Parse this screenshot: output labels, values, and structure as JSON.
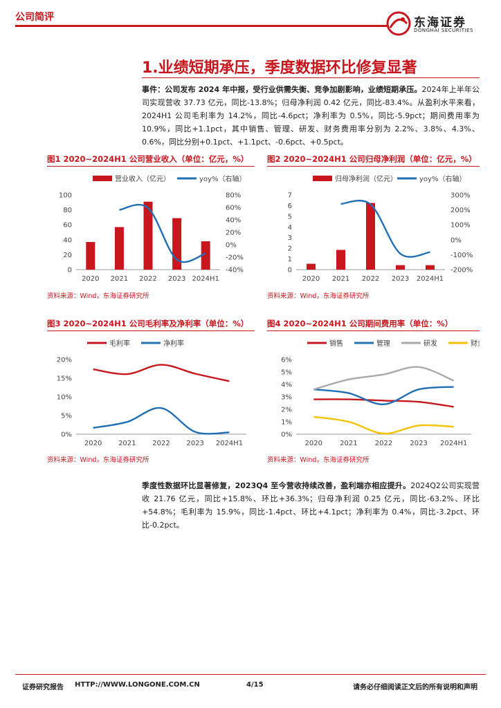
{
  "header": {
    "tag": "公司简评",
    "logo_cn": "东海证券",
    "logo_en": "DONGHAI SECURITIES"
  },
  "section": {
    "title": "1.业绩短期承压，季度数据环比修复显著"
  },
  "para1": {
    "lead": "事件：公司发布 2024 年中报，受行业供需失衡、竞争加剧影响，业绩短期承压。",
    "body": "2024年上半年公司实现营收 37.73 亿元，同比-13.8%；归母净利润 0.42 亿元，同比-83.4%。从盈利水平来看，2024H1 公司毛利率为 14.2%，同比-4.6pct；净利率为 0.5%，同比-5.9pct；期间费用率为 10.9%，同比+1.1pct，其中销售、管理、研发、财务费用率分别为 2.2%、3.8%、4.3%、0.6%，同比分别+0.1pct、+1.1pct、-0.6pct、+0.5pct。"
  },
  "para2": {
    "lead": "季度性数据环比显著修复，2023Q4 至今营收持续改善，盈利端亦相应提升。",
    "body": "2024Q2公司实现营收 21.76 亿元，同比+15.8%、环比+36.3%；归母净利润 0.25 亿元，同比-63.2%、环比+54.8%；毛利率为 15.9%，同比-1.4pct、环比+4.1pct；净利率为 0.4%，同比-3.2pct、环比-0.2pct。"
  },
  "source_text": "资料来源：Wind，东海证券研究所",
  "footer": {
    "left": "证券研究报告",
    "url": "HTTP://WWW.LONGONE.COM.CN",
    "page": "4/15",
    "right": "请务必仔细阅读正文后的所有说明和声明"
  },
  "colors": {
    "red": "#c8161d",
    "blue": "#1f6fb5",
    "gray": "#aaaaaa",
    "yellow": "#f5c200"
  },
  "chart_data": [
    {
      "title": "图1  2020~2024H1 公司营业收入（单位：亿元，%）",
      "type": "bar",
      "categories": [
        "2020",
        "2021",
        "2022",
        "2023",
        "2024H1"
      ],
      "series": [
        {
          "name": "营业收入（亿元）",
          "type": "bar",
          "axis": "left",
          "color": "#c8161d",
          "values": [
            37,
            57,
            91,
            69,
            38
          ]
        },
        {
          "name": "yoy%（右轴）",
          "type": "line",
          "axis": "right",
          "color": "#1f6fb5",
          "values": [
            null,
            56,
            59,
            -24,
            -14
          ]
        }
      ],
      "ylim": [
        0,
        100
      ],
      "yticks": [
        0,
        20,
        40,
        60,
        80,
        100
      ],
      "y2lim": [
        -40,
        80
      ],
      "y2ticks": [
        -40,
        -20,
        0,
        20,
        40,
        60,
        80
      ],
      "y2suffix": "%"
    },
    {
      "title": "图2  2020~2024H1 公司归母净利润（单位：亿元，%）",
      "type": "bar",
      "categories": [
        "2020",
        "2021",
        "2022",
        "2023",
        "2024H1"
      ],
      "series": [
        {
          "name": "归母净利润（亿元）",
          "type": "bar",
          "axis": "left",
          "color": "#c8161d",
          "values": [
            0.55,
            1.85,
            6.25,
            0.42,
            0.42
          ]
        },
        {
          "name": "yoy%（右轴）",
          "type": "line",
          "axis": "right",
          "color": "#1f6fb5",
          "values": [
            null,
            240,
            237,
            -93,
            -83
          ]
        }
      ],
      "ylim": [
        0,
        7
      ],
      "yticks": [
        0,
        1,
        2,
        3,
        4,
        5,
        6,
        7
      ],
      "y2lim": [
        -200,
        300
      ],
      "y2ticks": [
        -200,
        -100,
        0,
        100,
        200,
        300
      ],
      "y2suffix": "%"
    },
    {
      "title": "图3  2020~2024H1 公司毛利率及净利率（单位：%）",
      "type": "line",
      "categories": [
        "2020",
        "2021",
        "2022",
        "2023",
        "2024H1"
      ],
      "series": [
        {
          "name": "毛利率",
          "color": "#c8161d",
          "values": [
            17.4,
            16.1,
            18.6,
            16.2,
            14.2
          ]
        },
        {
          "name": "净利率",
          "color": "#1f6fb5",
          "values": [
            1.7,
            3.3,
            7.0,
            0.6,
            0.5
          ]
        }
      ],
      "ylim": [
        0,
        20
      ],
      "yticks": [
        0,
        5,
        10,
        15,
        20
      ],
      "ysuffix": "%"
    },
    {
      "title": "图4  2020~2024H1 公司期间费用率（单位：%）",
      "type": "line",
      "categories": [
        "2020",
        "2021",
        "2022",
        "2023",
        "2024H1"
      ],
      "series": [
        {
          "name": "销售",
          "color": "#c8161d",
          "values": [
            2.8,
            2.8,
            2.7,
            2.6,
            2.2
          ]
        },
        {
          "name": "管理",
          "color": "#1f6fb5",
          "values": [
            3.6,
            3.3,
            2.4,
            3.6,
            3.8
          ]
        },
        {
          "name": "研发",
          "color": "#aaaaaa",
          "values": [
            3.6,
            4.4,
            4.8,
            5.4,
            4.3
          ]
        },
        {
          "name": "财务",
          "color": "#f5c200",
          "values": [
            1.4,
            1.0,
            0.05,
            0.7,
            0.6
          ]
        }
      ],
      "ylim": [
        0,
        6
      ],
      "yticks": [
        0,
        1,
        2,
        3,
        4,
        5,
        6
      ],
      "ysuffix": "%"
    }
  ]
}
